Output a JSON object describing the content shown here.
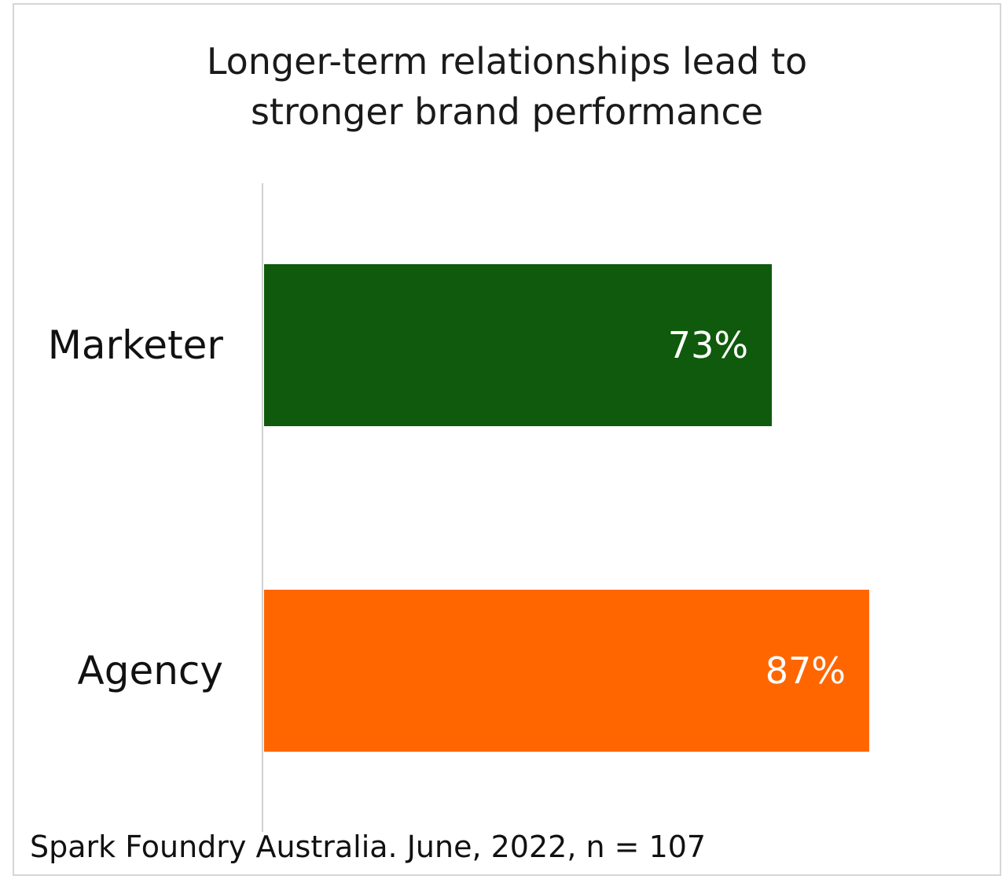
{
  "chart_data": {
    "type": "bar",
    "orientation": "horizontal",
    "title_lines": [
      "Longer-term relationships lead to",
      "stronger brand performance"
    ],
    "categories": [
      "Marketer",
      "Agency"
    ],
    "values": [
      73,
      87
    ],
    "value_labels": [
      "73%",
      "87%"
    ],
    "colors": [
      "#0f5a0c",
      "#ff6600"
    ],
    "xlim": [
      0,
      100
    ],
    "xlabel": "",
    "ylabel": "",
    "grid": false,
    "legend": "none",
    "source": "Spark Foundry Australia. June, 2022, n = 107"
  },
  "colors": {
    "axis": "#d0d0d0",
    "frame": "#d6d6d6"
  }
}
